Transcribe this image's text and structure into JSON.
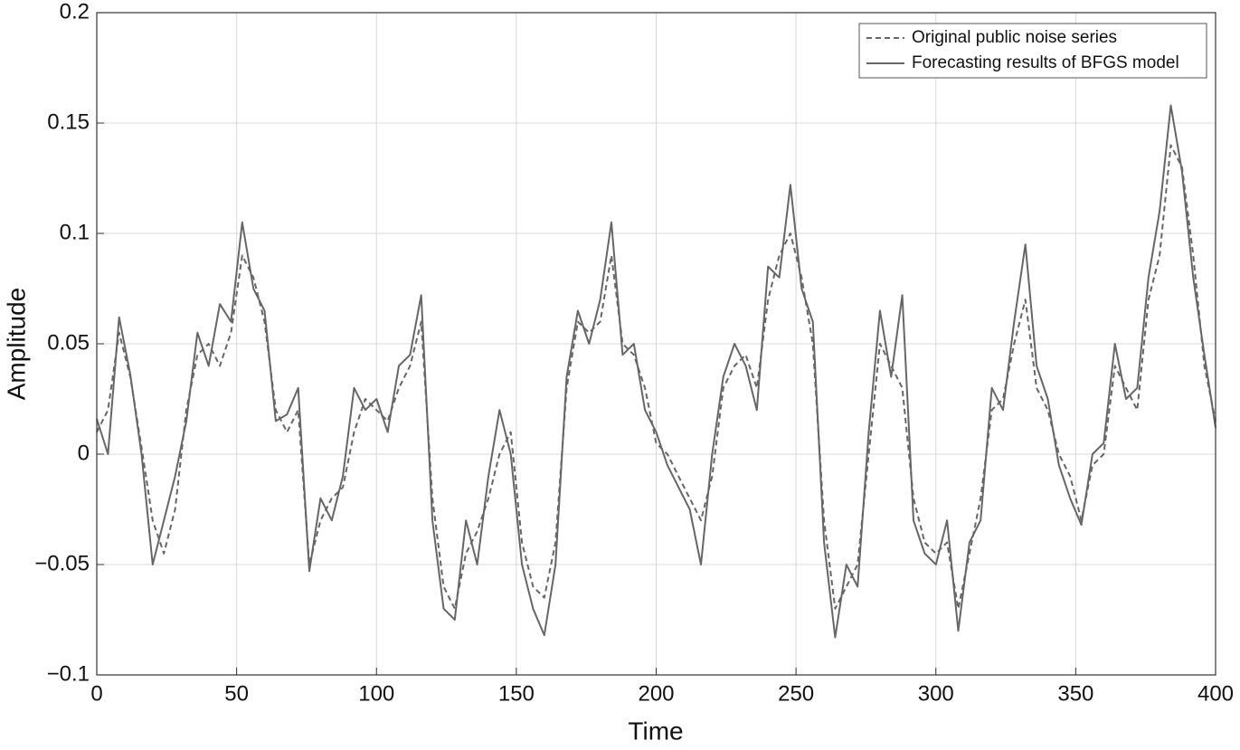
{
  "chart_data": {
    "type": "line",
    "xlabel": "Time",
    "ylabel": "Amplitude",
    "x": [
      0,
      4,
      8,
      12,
      16,
      20,
      24,
      28,
      32,
      36,
      40,
      44,
      48,
      52,
      56,
      60,
      64,
      68,
      72,
      76,
      80,
      84,
      88,
      92,
      96,
      100,
      104,
      108,
      112,
      116,
      120,
      124,
      128,
      132,
      136,
      140,
      144,
      148,
      152,
      156,
      160,
      164,
      168,
      172,
      176,
      180,
      184,
      188,
      192,
      196,
      200,
      204,
      208,
      212,
      216,
      220,
      224,
      228,
      232,
      236,
      240,
      244,
      248,
      252,
      256,
      260,
      264,
      268,
      272,
      276,
      280,
      284,
      288,
      292,
      296,
      300,
      304,
      308,
      312,
      316,
      320,
      324,
      328,
      332,
      336,
      340,
      344,
      348,
      352,
      356,
      360,
      364,
      368,
      372,
      376,
      380,
      384,
      388,
      392,
      396,
      400
    ],
    "series": [
      {
        "name": "Original public noise series",
        "color": "#666666",
        "style": "dashed",
        "values": [
          0.01,
          0.02,
          0.055,
          0.035,
          0.003,
          -0.03,
          -0.045,
          -0.025,
          0.02,
          0.045,
          0.05,
          0.04,
          0.055,
          0.09,
          0.08,
          0.06,
          0.02,
          0.01,
          0.02,
          -0.05,
          -0.03,
          -0.02,
          -0.015,
          0.01,
          0.025,
          0.02,
          0.015,
          0.03,
          0.04,
          0.06,
          -0.02,
          -0.06,
          -0.07,
          -0.045,
          -0.035,
          -0.02,
          0.0,
          0.01,
          -0.04,
          -0.06,
          -0.065,
          -0.04,
          0.03,
          0.06,
          0.055,
          0.06,
          0.09,
          0.05,
          0.045,
          0.03,
          0.005,
          0.0,
          -0.01,
          -0.02,
          -0.03,
          -0.01,
          0.03,
          0.04,
          0.045,
          0.03,
          0.07,
          0.09,
          0.1,
          0.08,
          0.05,
          -0.03,
          -0.07,
          -0.06,
          -0.05,
          0.0,
          0.05,
          0.04,
          0.03,
          -0.02,
          -0.04,
          -0.045,
          -0.04,
          -0.07,
          -0.045,
          -0.02,
          0.02,
          0.025,
          0.05,
          0.07,
          0.03,
          0.02,
          0.0,
          -0.01,
          -0.03,
          -0.005,
          0.0,
          0.04,
          0.03,
          0.02,
          0.07,
          0.09,
          0.14,
          0.13,
          0.09,
          0.04,
          0.015
        ]
      },
      {
        "name": "Forecasting results of BFGS model",
        "color": "#666666",
        "style": "solid",
        "values": [
          0.016,
          0.0,
          0.062,
          0.036,
          0.0,
          -0.05,
          -0.03,
          -0.01,
          0.015,
          0.055,
          0.04,
          0.068,
          0.06,
          0.105,
          0.075,
          0.065,
          0.015,
          0.018,
          0.03,
          -0.053,
          -0.02,
          -0.03,
          -0.01,
          0.03,
          0.02,
          0.025,
          0.01,
          0.04,
          0.045,
          0.072,
          -0.03,
          -0.07,
          -0.075,
          -0.03,
          -0.05,
          -0.01,
          0.02,
          0.0,
          -0.05,
          -0.07,
          -0.082,
          -0.05,
          0.035,
          0.065,
          0.05,
          0.07,
          0.105,
          0.045,
          0.05,
          0.02,
          0.01,
          -0.005,
          -0.015,
          -0.025,
          -0.05,
          0.0,
          0.035,
          0.05,
          0.04,
          0.02,
          0.085,
          0.08,
          0.122,
          0.075,
          0.06,
          -0.04,
          -0.083,
          -0.05,
          -0.06,
          0.01,
          0.065,
          0.035,
          0.072,
          -0.03,
          -0.045,
          -0.05,
          -0.03,
          -0.08,
          -0.04,
          -0.03,
          0.03,
          0.02,
          0.06,
          0.095,
          0.04,
          0.025,
          -0.005,
          -0.02,
          -0.032,
          0.0,
          0.005,
          0.05,
          0.025,
          0.03,
          0.08,
          0.11,
          0.158,
          0.128,
          0.08,
          0.045,
          0.012
        ]
      }
    ],
    "xlim": [
      0,
      400
    ],
    "xticks": [
      0,
      50,
      100,
      150,
      200,
      250,
      300,
      350,
      400
    ],
    "ylim": [
      -0.1,
      0.2
    ],
    "yticks": [
      {
        "value": -0.1,
        "label": "−0.1"
      },
      {
        "value": -0.05,
        "label": "−0.05"
      },
      0,
      0.05,
      0.1,
      0.15,
      0.2
    ],
    "grid": true,
    "legend": "upper right"
  }
}
